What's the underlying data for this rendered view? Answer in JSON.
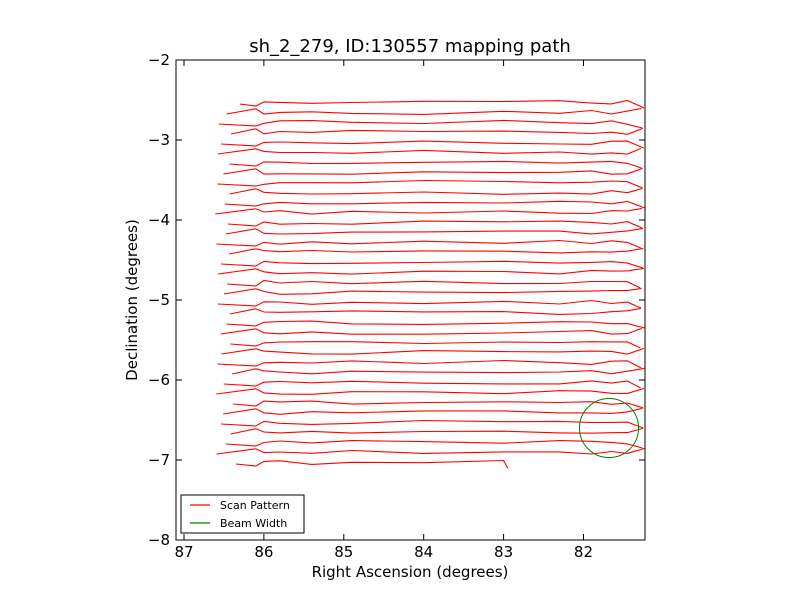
{
  "chart_data": {
    "type": "line",
    "title": "sh_2_279, ID:130557 mapping path",
    "xlabel": "Right Ascension (degrees)",
    "ylabel": "Declination (degrees)",
    "xlim": [
      87.1,
      81.23
    ],
    "ylim": [
      -8,
      -2
    ],
    "xticks": [
      87,
      86,
      85,
      84,
      83,
      82
    ],
    "xtick_labels": [
      "87",
      "86",
      "85",
      "84",
      "83",
      "82"
    ],
    "yticks": [
      -2,
      -3,
      -4,
      -5,
      -6,
      -7,
      -8
    ],
    "ytick_labels": [
      "−2",
      "−3",
      "−4",
      "−5",
      "−6",
      "−7",
      "−8"
    ],
    "legend_placement": "lower-left",
    "grid": false,
    "series": [
      {
        "name": "Scan Pattern",
        "color": "#ff0000",
        "rows": {
          "dec_start": -2.53,
          "dec_step": -0.125,
          "count": 37,
          "ra_west": 81.26,
          "ra_east": 86.5,
          "last_row_ra_end": 82.95
        }
      },
      {
        "name": "Beam Width",
        "color": "#008000",
        "circle": {
          "ra": 81.68,
          "dec": -6.6,
          "radius_deg": 0.37
        }
      }
    ],
    "legend": [
      {
        "label": "Scan Pattern",
        "color": "#ff0000"
      },
      {
        "label": "Beam Width",
        "color": "#008000"
      }
    ]
  }
}
